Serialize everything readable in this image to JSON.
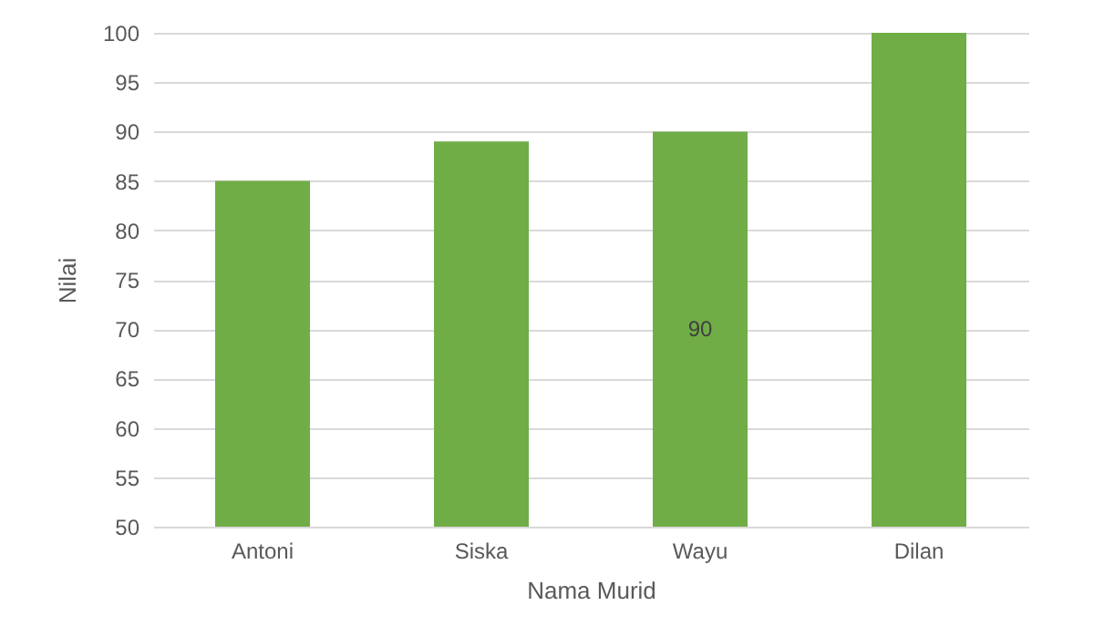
{
  "chart_data": {
    "type": "bar",
    "xlabel": "Nama Murid",
    "ylabel": "Nilai",
    "categories": [
      "Antoni",
      "Siska",
      "Wayu",
      "Dilan"
    ],
    "values": [
      85,
      89,
      90,
      100
    ],
    "color": "#70ad47",
    "value_labels": [
      null,
      null,
      "90",
      null
    ],
    "ylim": [
      50,
      100
    ],
    "yticks": [
      50,
      55,
      60,
      65,
      70,
      75,
      80,
      85,
      90,
      95,
      100
    ],
    "grid": "y"
  }
}
